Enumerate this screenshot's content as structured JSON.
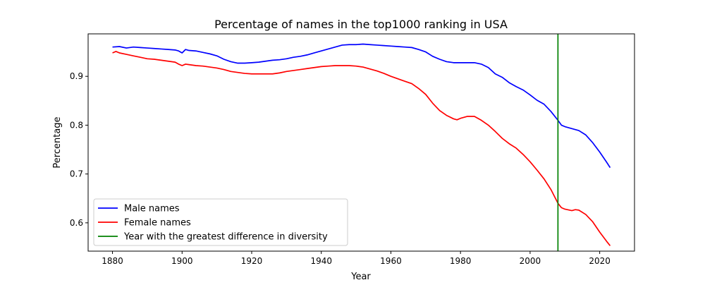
{
  "chart_data": {
    "type": "line",
    "title": "Percentage of names in the top1000 ranking in USA",
    "xlabel": "Year",
    "ylabel": "Percentage",
    "xlim": [
      1873,
      2030
    ],
    "ylim": [
      0.542,
      0.987
    ],
    "xticks": [
      1880,
      1900,
      1920,
      1940,
      1960,
      1980,
      2000,
      2020
    ],
    "yticks": [
      0.6,
      0.7,
      0.8,
      0.9
    ],
    "grid": false,
    "legend_position": "lower-left",
    "series": [
      {
        "name": "Male names",
        "color": "#0000ff",
        "points": [
          [
            1880,
            0.96
          ],
          [
            1882,
            0.961
          ],
          [
            1884,
            0.958
          ],
          [
            1886,
            0.96
          ],
          [
            1888,
            0.959
          ],
          [
            1890,
            0.958
          ],
          [
            1892,
            0.957
          ],
          [
            1894,
            0.956
          ],
          [
            1896,
            0.955
          ],
          [
            1898,
            0.954
          ],
          [
            1899,
            0.952
          ],
          [
            1900,
            0.948
          ],
          [
            1901,
            0.955
          ],
          [
            1902,
            0.953
          ],
          [
            1904,
            0.952
          ],
          [
            1906,
            0.949
          ],
          [
            1908,
            0.946
          ],
          [
            1910,
            0.942
          ],
          [
            1912,
            0.935
          ],
          [
            1914,
            0.93
          ],
          [
            1916,
            0.927
          ],
          [
            1918,
            0.927
          ],
          [
            1920,
            0.928
          ],
          [
            1922,
            0.929
          ],
          [
            1924,
            0.931
          ],
          [
            1926,
            0.933
          ],
          [
            1928,
            0.934
          ],
          [
            1930,
            0.936
          ],
          [
            1932,
            0.939
          ],
          [
            1934,
            0.941
          ],
          [
            1936,
            0.944
          ],
          [
            1938,
            0.948
          ],
          [
            1940,
            0.952
          ],
          [
            1942,
            0.956
          ],
          [
            1944,
            0.96
          ],
          [
            1946,
            0.964
          ],
          [
            1948,
            0.965
          ],
          [
            1950,
            0.965
          ],
          [
            1952,
            0.966
          ],
          [
            1954,
            0.965
          ],
          [
            1956,
            0.964
          ],
          [
            1958,
            0.963
          ],
          [
            1960,
            0.962
          ],
          [
            1962,
            0.961
          ],
          [
            1964,
            0.96
          ],
          [
            1966,
            0.959
          ],
          [
            1968,
            0.955
          ],
          [
            1970,
            0.95
          ],
          [
            1972,
            0.941
          ],
          [
            1974,
            0.935
          ],
          [
            1976,
            0.93
          ],
          [
            1978,
            0.928
          ],
          [
            1980,
            0.928
          ],
          [
            1982,
            0.928
          ],
          [
            1984,
            0.928
          ],
          [
            1986,
            0.925
          ],
          [
            1988,
            0.918
          ],
          [
            1990,
            0.905
          ],
          [
            1992,
            0.898
          ],
          [
            1994,
            0.887
          ],
          [
            1996,
            0.879
          ],
          [
            1998,
            0.872
          ],
          [
            2000,
            0.862
          ],
          [
            2002,
            0.851
          ],
          [
            2004,
            0.843
          ],
          [
            2006,
            0.828
          ],
          [
            2008,
            0.81
          ],
          [
            2009,
            0.8
          ],
          [
            2010,
            0.797
          ],
          [
            2012,
            0.793
          ],
          [
            2014,
            0.789
          ],
          [
            2016,
            0.78
          ],
          [
            2018,
            0.764
          ],
          [
            2020,
            0.745
          ],
          [
            2022,
            0.724
          ],
          [
            2023,
            0.713
          ]
        ]
      },
      {
        "name": "Female names",
        "color": "#ff0000",
        "points": [
          [
            1880,
            0.948
          ],
          [
            1881,
            0.951
          ],
          [
            1882,
            0.948
          ],
          [
            1884,
            0.945
          ],
          [
            1886,
            0.942
          ],
          [
            1888,
            0.939
          ],
          [
            1890,
            0.936
          ],
          [
            1892,
            0.935
          ],
          [
            1894,
            0.933
          ],
          [
            1896,
            0.931
          ],
          [
            1898,
            0.929
          ],
          [
            1899,
            0.925
          ],
          [
            1900,
            0.922
          ],
          [
            1901,
            0.925
          ],
          [
            1902,
            0.924
          ],
          [
            1904,
            0.922
          ],
          [
            1906,
            0.921
          ],
          [
            1908,
            0.919
          ],
          [
            1910,
            0.917
          ],
          [
            1912,
            0.914
          ],
          [
            1914,
            0.91
          ],
          [
            1916,
            0.908
          ],
          [
            1918,
            0.906
          ],
          [
            1920,
            0.905
          ],
          [
            1922,
            0.905
          ],
          [
            1924,
            0.905
          ],
          [
            1926,
            0.905
          ],
          [
            1928,
            0.907
          ],
          [
            1930,
            0.91
          ],
          [
            1932,
            0.912
          ],
          [
            1934,
            0.914
          ],
          [
            1936,
            0.916
          ],
          [
            1938,
            0.918
          ],
          [
            1940,
            0.92
          ],
          [
            1942,
            0.921
          ],
          [
            1944,
            0.922
          ],
          [
            1946,
            0.922
          ],
          [
            1948,
            0.922
          ],
          [
            1950,
            0.921
          ],
          [
            1952,
            0.919
          ],
          [
            1954,
            0.915
          ],
          [
            1956,
            0.911
          ],
          [
            1958,
            0.906
          ],
          [
            1960,
            0.9
          ],
          [
            1962,
            0.895
          ],
          [
            1964,
            0.89
          ],
          [
            1966,
            0.885
          ],
          [
            1968,
            0.875
          ],
          [
            1970,
            0.863
          ],
          [
            1972,
            0.845
          ],
          [
            1974,
            0.83
          ],
          [
            1976,
            0.82
          ],
          [
            1978,
            0.813
          ],
          [
            1979,
            0.811
          ],
          [
            1980,
            0.814
          ],
          [
            1982,
            0.818
          ],
          [
            1984,
            0.818
          ],
          [
            1986,
            0.81
          ],
          [
            1988,
            0.8
          ],
          [
            1990,
            0.787
          ],
          [
            1992,
            0.773
          ],
          [
            1994,
            0.762
          ],
          [
            1996,
            0.753
          ],
          [
            1998,
            0.74
          ],
          [
            2000,
            0.725
          ],
          [
            2002,
            0.708
          ],
          [
            2004,
            0.69
          ],
          [
            2006,
            0.668
          ],
          [
            2008,
            0.64
          ],
          [
            2009,
            0.631
          ],
          [
            2010,
            0.628
          ],
          [
            2012,
            0.625
          ],
          [
            2013,
            0.627
          ],
          [
            2014,
            0.626
          ],
          [
            2016,
            0.617
          ],
          [
            2018,
            0.602
          ],
          [
            2020,
            0.581
          ],
          [
            2022,
            0.562
          ],
          [
            2023,
            0.553
          ]
        ]
      },
      {
        "name": "Year with the greatest difference in diversity",
        "color": "#008000",
        "vline_x": 2008
      }
    ]
  }
}
